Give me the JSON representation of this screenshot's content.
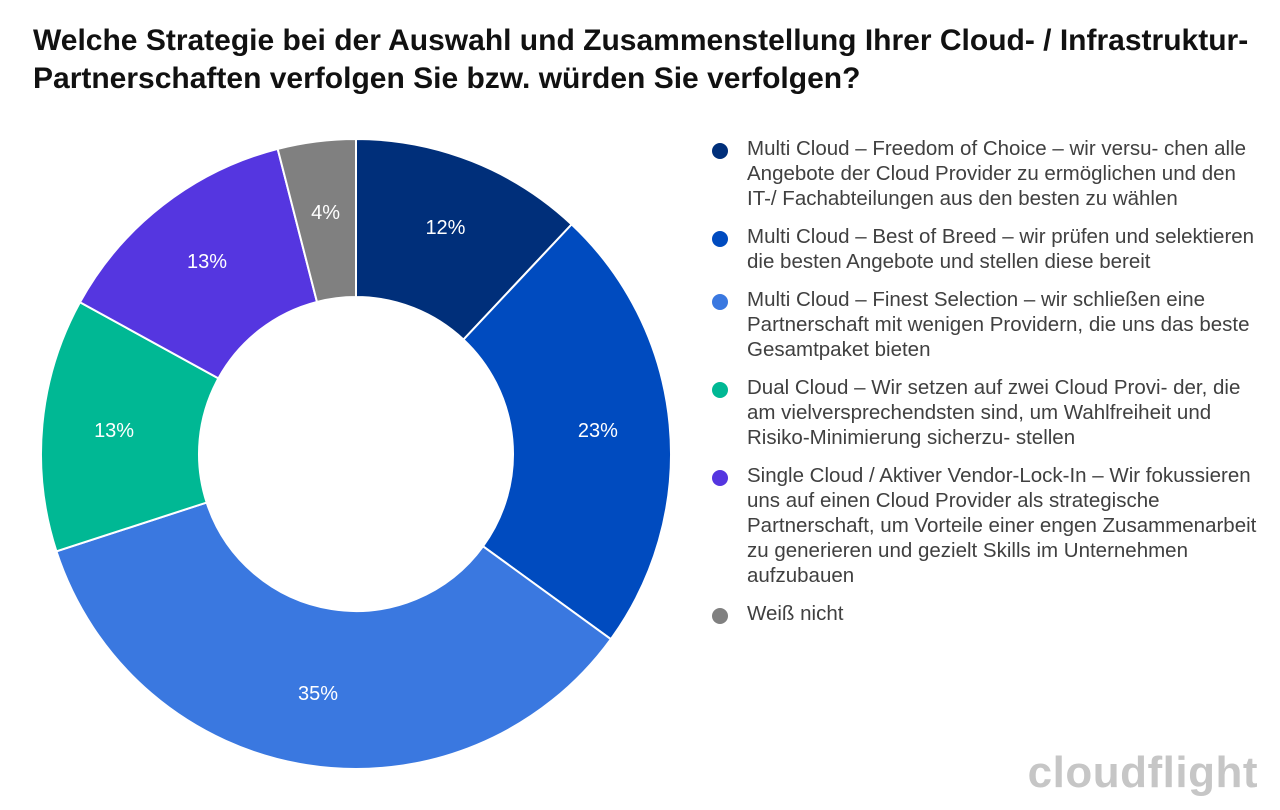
{
  "chart_data": {
    "type": "pie",
    "title": "Welche Strategie bei der Auswahl und Zusammenstellung Ihrer Cloud- / Infrastruktur-Partnerschaften verfolgen Sie bzw. würden Sie verfolgen?",
    "donut": true,
    "legend_position": "right",
    "slices": [
      {
        "label": "Multi Cloud – Freedom of Choice – wir versu- chen alle Angebote der Cloud Provider zu ermöglichen und den IT-/ Fachabteilungen aus den besten zu wählen",
        "value": 12,
        "value_label": "12%",
        "color": "#002f7a"
      },
      {
        "label": "Multi Cloud – Best of Breed – wir prüfen und selektieren die besten Angebote und stellen diese bereit",
        "value": 23,
        "value_label": "23%",
        "color": "#004bbf"
      },
      {
        "label": "Multi Cloud – Finest Selection – wir schließen eine Partnerschaft mit wenigen Providern, die uns das beste Gesamtpaket bieten",
        "value": 35,
        "value_label": "35%",
        "color": "#3a78e0"
      },
      {
        "label": "Dual Cloud – Wir setzen auf zwei Cloud Provi- der, die am vielversprechendsten sind, um Wahlfreiheit und Risiko-Minimierung sicherzu- stellen",
        "value": 13,
        "value_label": "13%",
        "color": "#00b894"
      },
      {
        "label": "Single Cloud / Aktiver Vendor-Lock-In – Wir fokussieren uns auf einen Cloud Provider als strategische Partnerschaft, um Vorteile einer engen Zusammenarbeit zu generieren und gezielt Skills im Unternehmen aufzubauen",
        "value": 13,
        "value_label": "13%",
        "color": "#5536e0"
      },
      {
        "label": "Weiß nicht",
        "value": 4,
        "value_label": "4%",
        "color": "#808080"
      }
    ]
  },
  "brand": {
    "logo_text": "cloudflight"
  }
}
